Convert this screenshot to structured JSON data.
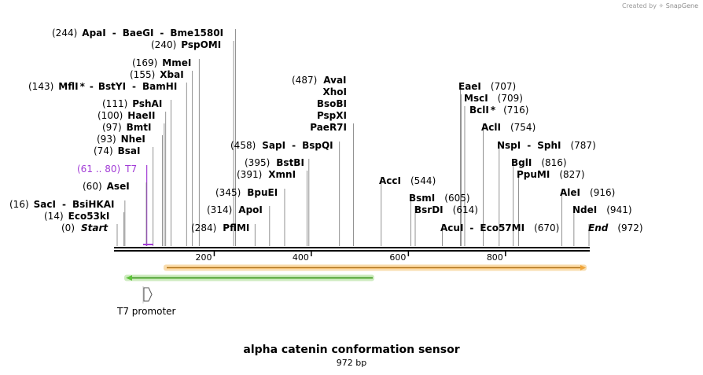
{
  "credit": {
    "prefix": "Created by",
    "brand": "SnapGene"
  },
  "title": "alpha catenin conformation sensor",
  "length_label": "972 bp",
  "sequence": {
    "length": 972
  },
  "ruler_ticks": [
    {
      "bp": 200,
      "label": "200"
    },
    {
      "bp": 400,
      "label": "400"
    },
    {
      "bp": 600,
      "label": "600"
    },
    {
      "bp": 800,
      "label": "800"
    }
  ],
  "features": [
    {
      "name": "t7-promoter",
      "label": "T7 promoter",
      "color": "#a23cd6",
      "start": 61,
      "end": 80
    },
    {
      "name": "green-feature",
      "color": "#5dc23a",
      "outline": "#cdebbf",
      "start": 20,
      "end": 531,
      "direction": "reverse"
    },
    {
      "name": "orange-feature",
      "color": "#f0a53a",
      "outline": "#f8dcae",
      "start": 104,
      "end": 960,
      "direction": "forward"
    }
  ],
  "sites": [
    {
      "id": "apai",
      "pos": "(244)",
      "name": "ApaI",
      "bp": 244
    },
    {
      "id": "baegi",
      "name": "BaeGI",
      "bp": 244
    },
    {
      "id": "bme1580i",
      "name": "Bme1580I",
      "bp": 244
    },
    {
      "id": "pspomi",
      "pos": "(240)",
      "name": "PspOMI",
      "bp": 240
    },
    {
      "id": "mmei",
      "pos": "(169)",
      "name": "MmeI",
      "bp": 169
    },
    {
      "id": "xbai",
      "pos": "(155)",
      "name": "XbaI",
      "bp": 155
    },
    {
      "id": "mfli",
      "pos": "(143)",
      "name": "MflI",
      "star": "*",
      "bp": 143
    },
    {
      "id": "bstyi",
      "name": "BstYI",
      "bp": 143
    },
    {
      "id": "bamhi",
      "name": "BamHI",
      "bp": 143
    },
    {
      "id": "pshai",
      "pos": "(111)",
      "name": "PshAI",
      "bp": 111
    },
    {
      "id": "haeii",
      "pos": "(100)",
      "name": "HaeII",
      "bp": 100
    },
    {
      "id": "bmti",
      "pos": "(97)",
      "name": "BmtI",
      "bp": 97
    },
    {
      "id": "nhei",
      "pos": "(93)",
      "name": "NheI",
      "bp": 93
    },
    {
      "id": "bsai",
      "pos": "(74)",
      "name": "BsaI",
      "bp": 74
    },
    {
      "id": "t7",
      "pos": "(61 .. 80)",
      "name": "T7",
      "bp": 61
    },
    {
      "id": "asei",
      "pos": "(60)",
      "name": "AseI",
      "bp": 60
    },
    {
      "id": "saci",
      "pos": "(16)",
      "name": "SacI",
      "bp": 16
    },
    {
      "id": "bsihkai",
      "name": "BsiHKAI",
      "bp": 16
    },
    {
      "id": "eco53ki",
      "pos": "(14)",
      "name": "Eco53kI",
      "bp": 14
    },
    {
      "id": "start",
      "pos": "(0)",
      "name": "Start",
      "bp": 0
    },
    {
      "id": "pflmi",
      "pos": "(284)",
      "name": "PflMI",
      "bp": 284
    },
    {
      "id": "apoi",
      "pos": "(314)",
      "name": "ApoI",
      "bp": 314
    },
    {
      "id": "bpuei",
      "pos": "(345)",
      "name": "BpuEI",
      "bp": 345
    },
    {
      "id": "xmni",
      "pos": "(391)",
      "name": "XmnI",
      "bp": 391
    },
    {
      "id": "bstbi",
      "pos": "(395)",
      "name": "BstBI",
      "bp": 395
    },
    {
      "id": "sapi",
      "pos": "(458)",
      "name": "SapI",
      "bp": 458
    },
    {
      "id": "bspqi",
      "name": "BspQI",
      "bp": 458
    },
    {
      "id": "avai",
      "pos": "(487)",
      "name": "AvaI",
      "bp": 487
    },
    {
      "id": "xhoi",
      "name": "XhoI",
      "bp": 487
    },
    {
      "id": "bsobi",
      "name": "BsoBI",
      "bp": 487
    },
    {
      "id": "pspxi",
      "name": "PspXI",
      "bp": 487
    },
    {
      "id": "paer7i",
      "name": "PaeR7I",
      "bp": 487
    },
    {
      "id": "acci",
      "pos": "(544)",
      "name": "AccI",
      "bp": 544
    },
    {
      "id": "bsmi",
      "pos": "(605)",
      "name": "BsmI",
      "bp": 605
    },
    {
      "id": "bsrdi",
      "pos": "(614)",
      "name": "BsrDI",
      "bp": 614
    },
    {
      "id": "acui",
      "name": "AcuI",
      "bp": 670
    },
    {
      "id": "eco57mi",
      "pos": "(670)",
      "name": "Eco57MI",
      "bp": 670
    },
    {
      "id": "eaei",
      "pos": "(707)",
      "name": "EaeI",
      "bp": 707
    },
    {
      "id": "msci",
      "pos": "(709)",
      "name": "MscI",
      "bp": 709
    },
    {
      "id": "bcli",
      "pos": "(716)",
      "name": "BclI",
      "star": "*",
      "bp": 716
    },
    {
      "id": "acli",
      "pos": "(754)",
      "name": "AclI",
      "bp": 754
    },
    {
      "id": "nspi",
      "name": "NspI",
      "bp": 787
    },
    {
      "id": "sphi",
      "pos": "(787)",
      "name": "SphI",
      "bp": 787
    },
    {
      "id": "bgli",
      "pos": "(816)",
      "name": "BglI",
      "bp": 816
    },
    {
      "id": "ppumi",
      "pos": "(827)",
      "name": "PpuMI",
      "bp": 827
    },
    {
      "id": "alei",
      "pos": "(916)",
      "name": "AleI",
      "bp": 916
    },
    {
      "id": "ndei",
      "pos": "(941)",
      "name": "NdeI",
      "bp": 941
    },
    {
      "id": "end",
      "pos": "(972)",
      "name": "End",
      "bp": 972
    }
  ]
}
